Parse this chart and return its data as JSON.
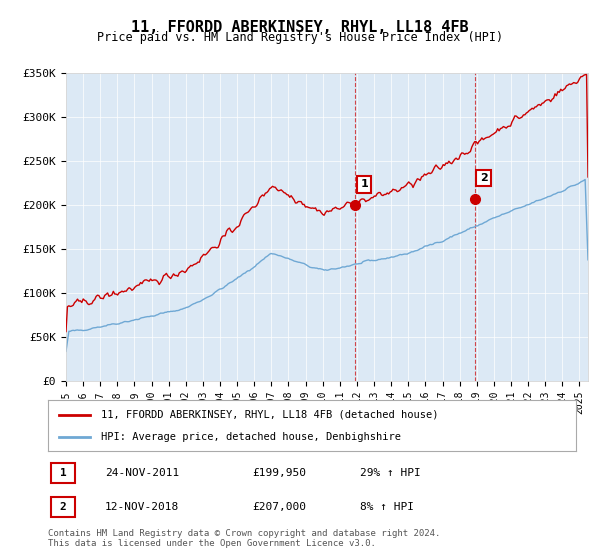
{
  "title": "11, FFORDD ABERKINSEY, RHYL, LL18 4FB",
  "subtitle": "Price paid vs. HM Land Registry's House Price Index (HPI)",
  "ylim": [
    0,
    350000
  ],
  "xlim_start": 1995,
  "xlim_end": 2025.5,
  "hpi_color": "#6fa8d4",
  "price_color": "#cc0000",
  "sale1_date": 2011.9,
  "sale1_price": 199950,
  "sale1_label": "1",
  "sale2_date": 2018.87,
  "sale2_price": 207000,
  "sale2_label": "2",
  "legend_line1": "11, FFORDD ABERKINSEY, RHYL, LL18 4FB (detached house)",
  "legend_line2": "HPI: Average price, detached house, Denbighshire",
  "table_row1_num": "1",
  "table_row1_date": "24-NOV-2011",
  "table_row1_price": "£199,950",
  "table_row1_hpi": "29% ↑ HPI",
  "table_row2_num": "2",
  "table_row2_date": "12-NOV-2018",
  "table_row2_price": "£207,000",
  "table_row2_hpi": "8% ↑ HPI",
  "footnote": "Contains HM Land Registry data © Crown copyright and database right 2024.\nThis data is licensed under the Open Government Licence v3.0.",
  "background_chart": "#dce9f5",
  "background_fig": "#ffffff"
}
